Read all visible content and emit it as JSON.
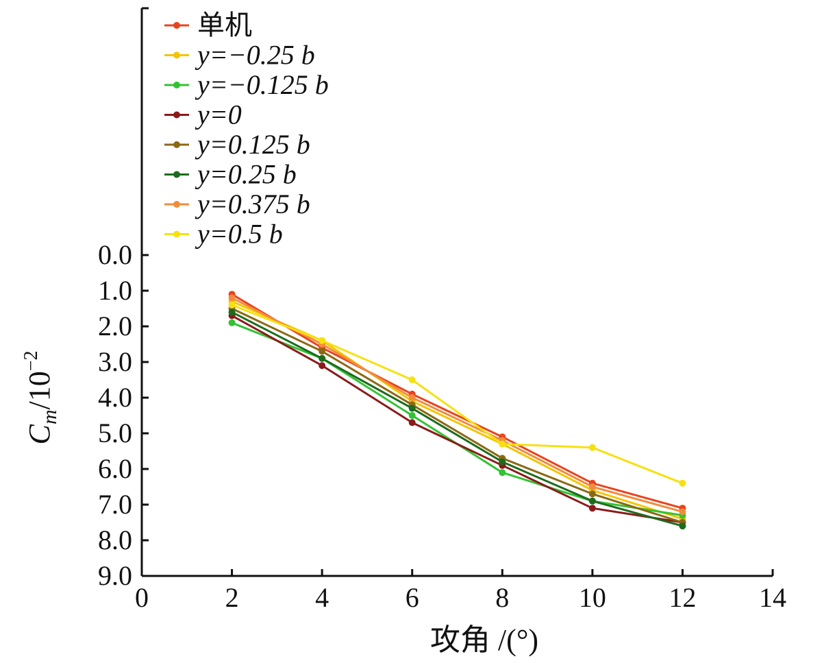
{
  "chart_data": {
    "type": "line",
    "xlabel": "攻角 /(°)",
    "ylabel_main": "C",
    "ylabel_sub": "m",
    "ylabel_unit": "/10",
    "ylabel_exp": "−2",
    "xlim": [
      0,
      14
    ],
    "ylim": [
      0,
      9
    ],
    "y_inverted": true,
    "x_ticks": [
      "0",
      "2",
      "4",
      "6",
      "8",
      "10",
      "12",
      "14"
    ],
    "y_ticks": [
      "0.0",
      "1.0",
      "2.0",
      "3.0",
      "4.0",
      "5.0",
      "6.0",
      "7.0",
      "8.0",
      "9.0"
    ],
    "legend_position": "top-left",
    "grid": false,
    "x": [
      2,
      4,
      6,
      8,
      10,
      12
    ],
    "series": [
      {
        "name": "单机",
        "color": "#e8431f",
        "values": [
          1.1,
          2.6,
          3.9,
          5.1,
          6.4,
          7.1
        ]
      },
      {
        "name": "y=−0.25 b",
        "color": "#f5c400",
        "values": [
          1.3,
          2.4,
          4.1,
          5.3,
          6.6,
          7.4
        ]
      },
      {
        "name": "y=−0.125 b",
        "color": "#33c233",
        "values": [
          1.9,
          2.9,
          4.5,
          6.1,
          6.9,
          7.3
        ]
      },
      {
        "name": "y=0",
        "color": "#8b1a1a",
        "values": [
          1.7,
          3.1,
          4.7,
          5.9,
          7.1,
          7.5
        ]
      },
      {
        "name": "y=0.125 b",
        "color": "#8b6914",
        "values": [
          1.5,
          2.7,
          4.2,
          5.7,
          6.7,
          7.5
        ]
      },
      {
        "name": "y=0.25 b",
        "color": "#1e6b1e",
        "values": [
          1.6,
          2.9,
          4.3,
          5.8,
          6.9,
          7.6
        ]
      },
      {
        "name": "y=0.375 b",
        "color": "#f28c3c",
        "values": [
          1.2,
          2.5,
          4.0,
          5.2,
          6.5,
          7.2
        ]
      },
      {
        "name": "y=0.5 b",
        "color": "#f7e012",
        "values": [
          1.4,
          2.4,
          3.5,
          5.3,
          5.4,
          6.4
        ]
      }
    ]
  }
}
